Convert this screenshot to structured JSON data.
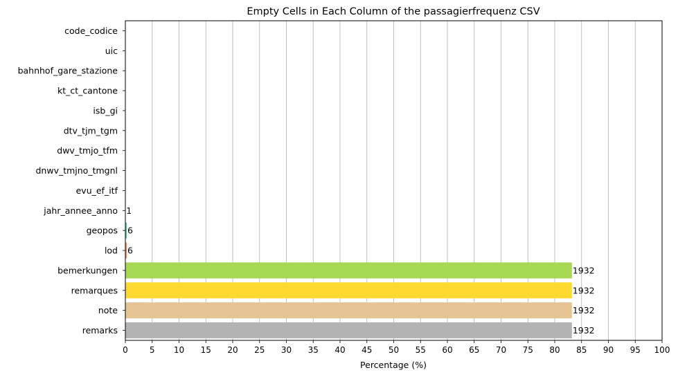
{
  "chart_data": {
    "type": "bar",
    "orientation": "horizontal",
    "title": "Empty Cells in Each Column of the passagierfrequenz CSV",
    "xlabel": "Percentage (%)",
    "ylabel": "",
    "xlim": [
      0,
      100
    ],
    "xticks": [
      0,
      5,
      10,
      15,
      20,
      25,
      30,
      35,
      40,
      45,
      50,
      55,
      60,
      65,
      70,
      75,
      80,
      85,
      90,
      95,
      100
    ],
    "grid": "vertical",
    "categories": [
      "code_codice",
      "uic",
      "bahnhof_gare_stazione",
      "kt_ct_cantone",
      "isb_gi",
      "dtv_tjm_tgm",
      "dwv_tmjo_tfm",
      "dnwv_tmjno_tmgnl",
      "evu_ef_itf",
      "jahr_annee_anno",
      "geopos",
      "lod",
      "bemerkungen",
      "remarques",
      "note",
      "remarks"
    ],
    "values": [
      0,
      0,
      0,
      0,
      0,
      0,
      0,
      0,
      0,
      0.04,
      0.26,
      0.26,
      83.2,
      83.2,
      83.2,
      83.2
    ],
    "labels": [
      "",
      "",
      "",
      "",
      "",
      "",
      "",
      "",
      "",
      "1",
      "6",
      "6",
      "1932",
      "1932",
      "1932",
      "1932"
    ],
    "colors": [
      "#8da0cb",
      "#8da0cb",
      "#8da0cb",
      "#8da0cb",
      "#8da0cb",
      "#8da0cb",
      "#8da0cb",
      "#8da0cb",
      "#8da0cb",
      "#e78ac3",
      "#66c2a5",
      "#fc8d62",
      "#a6d854",
      "#ffd92f",
      "#e5c494",
      "#b3b3b3"
    ]
  }
}
